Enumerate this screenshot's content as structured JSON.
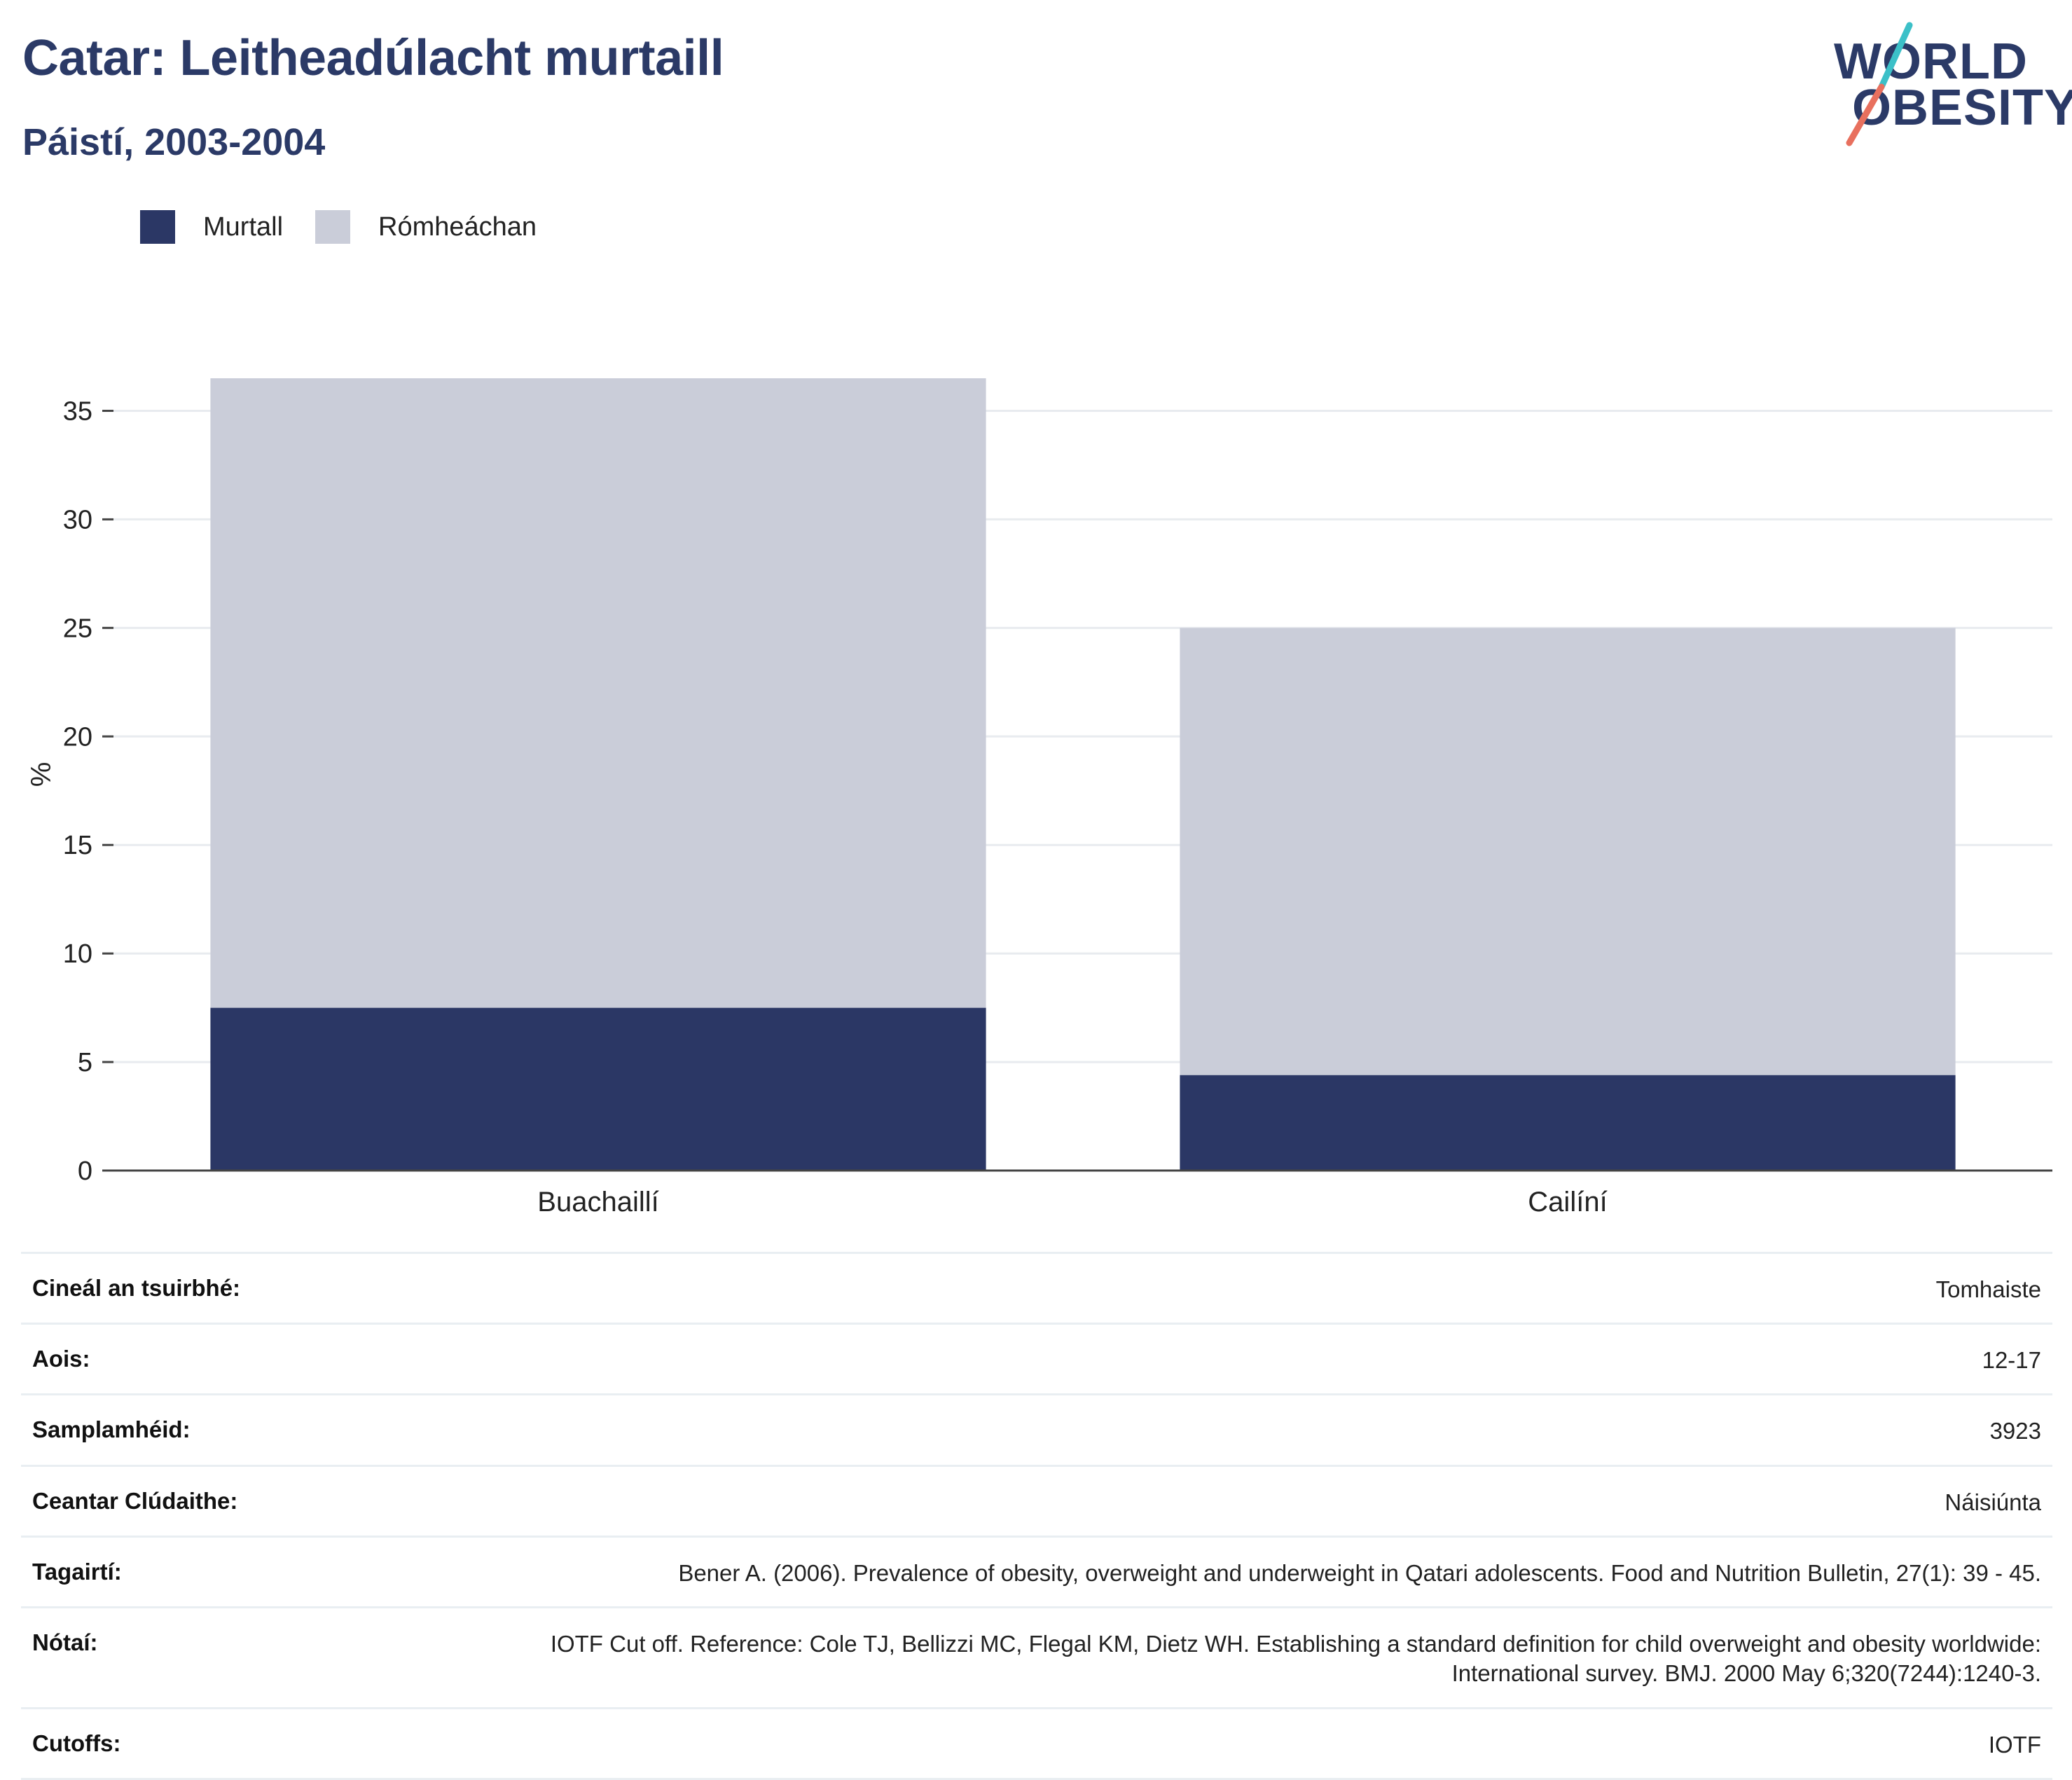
{
  "header": {
    "title": "Catar: Leitheadúlacht murtaill",
    "subtitle": "Páistí, 2003-2004"
  },
  "logo": {
    "line1": "WORLD",
    "line2": "OBESITY",
    "colors": {
      "text": "#2b3a67",
      "slash_top": "#3cc0c8",
      "slash_bottom": "#e8705e"
    }
  },
  "legend": [
    {
      "label": "Murtall",
      "color": "#2b3765"
    },
    {
      "label": "Rómheáchan",
      "color": "#cacdd9"
    }
  ],
  "chart_data": {
    "type": "bar",
    "stacked": true,
    "categories": [
      "Buachaillí",
      "Cailíní"
    ],
    "series": [
      {
        "name": "Murtall",
        "values": [
          7.5,
          4.4
        ],
        "color": "#2b3765"
      },
      {
        "name": "Rómheáchan",
        "values": [
          29.0,
          20.6
        ],
        "color": "#cacdd9"
      }
    ],
    "ylabel": "%",
    "ylim": [
      0,
      36.5
    ],
    "yticks": [
      0,
      5,
      10,
      15,
      20,
      25,
      30,
      35
    ],
    "grid": true,
    "legend_position": "top-left"
  },
  "info": [
    {
      "label": "Cineál an tsuirbhé:",
      "value": "Tomhaiste"
    },
    {
      "label": "Aois:",
      "value": "12-17"
    },
    {
      "label": "Samplamhéid:",
      "value": "3923"
    },
    {
      "label": "Ceantar Clúdaithe:",
      "value": "Náisiúnta"
    },
    {
      "label": "Tagairtí:",
      "value": "Bener A. (2006). Prevalence of obesity, overweight and underweight in Qatari adolescents. Food and Nutrition Bulletin, 27(1): 39 - 45."
    },
    {
      "label": "Nótaí:",
      "value": "IOTF Cut off. Reference: Cole TJ, Bellizzi MC, Flegal KM, Dietz WH. Establishing a standard definition for child overweight and obesity worldwide: International survey. BMJ. 2000 May 6;320(7244):1240-3."
    },
    {
      "label": "Cutoffs:",
      "value": "IOTF"
    }
  ]
}
